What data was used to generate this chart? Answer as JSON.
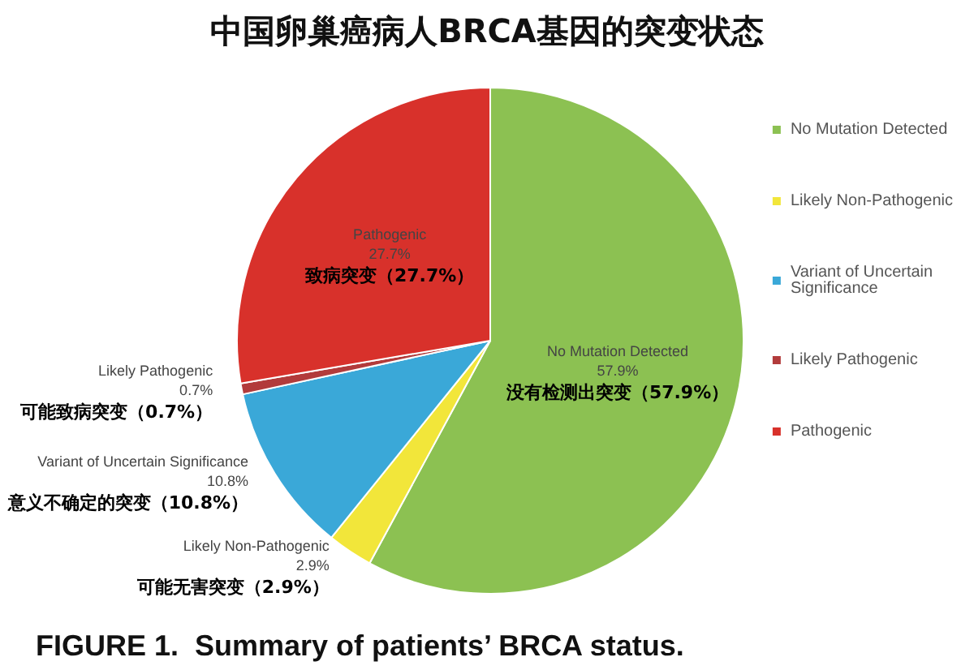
{
  "chart_data": {
    "type": "pie",
    "title": "中国卵巢癌病人BRCA基因的突变状态",
    "categories": [
      "No Mutation Detected",
      "Likely Non-Pathogenic",
      "Variant of Uncertain Significance",
      "Likely Pathogenic",
      "Pathogenic"
    ],
    "values": [
      57.9,
      2.9,
      10.8,
      0.7,
      27.7
    ],
    "colors": [
      "#8cc152",
      "#f2e63a",
      "#3aa8d8",
      "#b23b3b",
      "#d8312b"
    ],
    "value_labels": [
      "57.9%",
      "2.9%",
      "10.8%",
      "0.7%",
      "27.7%"
    ],
    "annotations": [
      "没有检测出突变（57.9%）",
      "可能无害突变（2.9%）",
      "意义不确定的突变（10.8%）",
      "可能致病突变（0.7%）",
      "致病突变（27.7%）",
      "FIGURE 1.  Summary of patients’ BRCA status."
    ],
    "legend": "right"
  }
}
